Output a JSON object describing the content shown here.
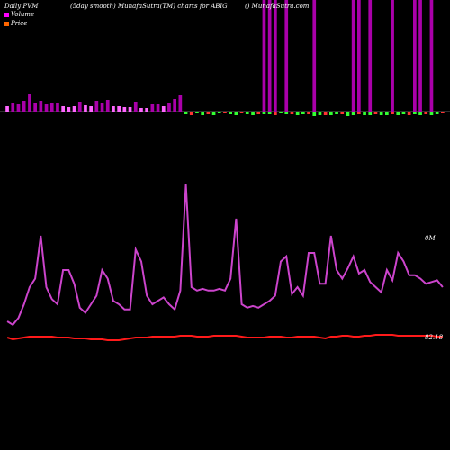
{
  "header": {
    "left": "Daily PVM",
    "middle": "(5day smooth) MunafaSutra(TM) charts for ABIG",
    "right": "() MunafaSutra.com"
  },
  "legend": [
    {
      "label": "Volume",
      "color": "#ff00ff"
    },
    {
      "label": "Price",
      "color": "#ff6600"
    }
  ],
  "colors": {
    "background": "#000000",
    "pvm_line": "#cc44cc",
    "price_line": "#ff1a1a",
    "bar_up": "#aa00aa",
    "bar_pos_small": "#ff66ff",
    "bar_down": "#ff3333",
    "bar_neg": "#33ff33",
    "zero_line": "#bbbbbb"
  },
  "chart_data": {
    "type": "bar",
    "series": [
      {
        "name": "PVM",
        "type": "bar",
        "values": [
          6,
          9,
          8,
          12,
          20,
          10,
          12,
          8,
          9,
          10,
          6,
          5,
          6,
          11,
          7,
          6,
          12,
          9,
          13,
          6,
          6,
          5,
          5,
          11,
          4,
          4,
          8,
          8,
          6,
          10,
          14,
          18,
          -3,
          -4,
          -2,
          -4,
          -3,
          -4,
          -2,
          -2,
          -3,
          -4,
          -2,
          -3,
          -4,
          -3,
          -3,
          -3,
          -4,
          -2,
          -3,
          -3,
          -4,
          -3,
          -3,
          -5,
          -4,
          -4,
          -4,
          -3,
          -3,
          -5,
          -4,
          -3,
          -4,
          -4,
          -3,
          -4,
          -4,
          -3,
          -4,
          -3,
          -4,
          -3,
          -4,
          -3,
          -4,
          -3,
          -2
        ]
      }
    ],
    "lines": [
      {
        "name": "Volume",
        "values": [
          20,
          18,
          22,
          30,
          40,
          45,
          70,
          40,
          33,
          30,
          50,
          50,
          42,
          28,
          25,
          30,
          35,
          50,
          45,
          32,
          30,
          27,
          27,
          62,
          55,
          35,
          30,
          32,
          34,
          30,
          27,
          38,
          100,
          40,
          38,
          39,
          38,
          38,
          39,
          38,
          45,
          80,
          30,
          28,
          29,
          28,
          30,
          32,
          35,
          55,
          58,
          36,
          40,
          35,
          60,
          60,
          42,
          42,
          70,
          50,
          45,
          51,
          58,
          48,
          50,
          43,
          40,
          37,
          50,
          44,
          60,
          55,
          47,
          47,
          45,
          42,
          43,
          44,
          40
        ]
      },
      {
        "name": "Price",
        "values": [
          22,
          20,
          21,
          22,
          23,
          23,
          23,
          23,
          23,
          22,
          22,
          22,
          21,
          21,
          21,
          20,
          20,
          20,
          19,
          19,
          19,
          20,
          21,
          22,
          22,
          22,
          23,
          23,
          23,
          23,
          23,
          24,
          24,
          24,
          23,
          23,
          23,
          24,
          24,
          24,
          24,
          24,
          23,
          22,
          22,
          22,
          22,
          23,
          23,
          23,
          22,
          22,
          23,
          23,
          23,
          23,
          22,
          21,
          23,
          23,
          24,
          24,
          23,
          23,
          24,
          24,
          25,
          25,
          25,
          25,
          24,
          24,
          24,
          24,
          24,
          24,
          24,
          23,
          23
        ]
      }
    ],
    "y_labels": [
      "0M",
      "82.18"
    ]
  }
}
